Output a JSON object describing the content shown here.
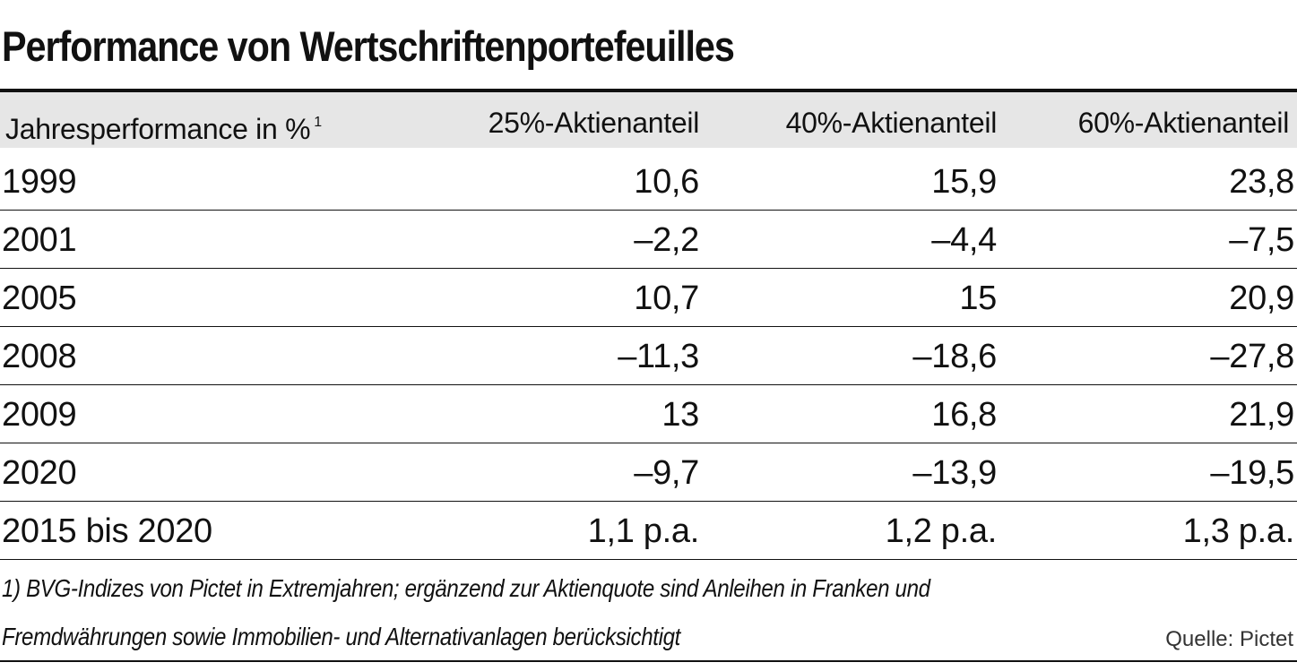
{
  "chart_data": {
    "type": "table",
    "title": "Performance von Wertschriftenportefeuilles",
    "header": {
      "label": "Jahresperformance in %",
      "footnote_marker": "1",
      "columns": [
        "25%-Aktienanteil",
        "40%-Aktienanteil",
        "60%-Aktienanteil"
      ]
    },
    "rows": [
      {
        "label": "1999",
        "values": [
          "10,6",
          "15,9",
          "23,8"
        ]
      },
      {
        "label": "2001",
        "values": [
          "–2,2",
          "–4,4",
          "–7,5"
        ]
      },
      {
        "label": "2005",
        "values": [
          "10,7",
          "15",
          "20,9"
        ]
      },
      {
        "label": "2008",
        "values": [
          "–11,3",
          "–18,6",
          "–27,8"
        ]
      },
      {
        "label": "2009",
        "values": [
          "13",
          "16,8",
          "21,9"
        ]
      },
      {
        "label": "2020",
        "values": [
          "–9,7",
          "–13,9",
          "–19,5"
        ]
      },
      {
        "label": "2015 bis 2020",
        "values": [
          "1,1 p.a.",
          "1,2 p.a.",
          "1,3 p.a."
        ]
      }
    ],
    "footnote": [
      "1) BVG-Indizes von Pictet in Extremjahren; ergänzend zur Aktienquote sind Anleihen in Franken und",
      "Fremdwährungen sowie Immobilien- und Alternativanlagen berücksichtigt"
    ],
    "source": "Quelle: Pictet"
  }
}
